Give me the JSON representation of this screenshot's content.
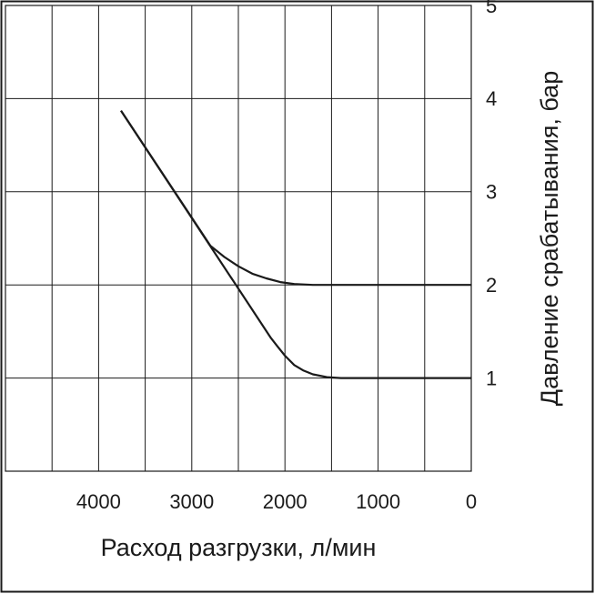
{
  "chart_data": {
    "type": "line",
    "xlabel": "Расход разгрузки, л/мин",
    "ylabel": "Давление срабатывания, бар",
    "xlim": [
      5000,
      0
    ],
    "ylim": [
      0,
      5
    ],
    "xticks": [
      4000,
      3000,
      2000,
      1000,
      0
    ],
    "xminor": [
      4500,
      3500,
      2500,
      1500,
      500
    ],
    "yticks": [
      1,
      2,
      3,
      4,
      5
    ],
    "grid": true,
    "series": [
      {
        "color": "#1a1a1a",
        "x": [
          3760,
          2800,
          2650,
          2500,
          2350,
          2200,
          2050,
          1900,
          1700,
          0
        ],
        "values": [
          3.87,
          2.42,
          2.3,
          2.2,
          2.12,
          2.07,
          2.03,
          2.01,
          2.0,
          2.0
        ]
      },
      {
        "color": "#1a1a1a",
        "x": [
          3760,
          2150,
          2080,
          2000,
          1900,
          1800,
          1700,
          1550,
          1400,
          0
        ],
        "values": [
          3.87,
          1.43,
          1.34,
          1.24,
          1.14,
          1.08,
          1.04,
          1.01,
          1.0,
          1.0
        ]
      }
    ]
  }
}
